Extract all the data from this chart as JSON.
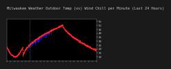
{
  "title": "Milwaukee Weather Outdoor Temp (vs) Wind Chill per Minute (Last 24 Hours)",
  "background_color": "#1a1a1a",
  "plot_background": "#000000",
  "title_color": "#cccccc",
  "tick_color": "#cccccc",
  "grid_color": "#333333",
  "ylim": [
    5,
    58
  ],
  "yticks": [
    10,
    15,
    20,
    25,
    30,
    35,
    40,
    45,
    50,
    55
  ],
  "num_points": 1440,
  "vline_x": 370,
  "temp_color": "#ff2222",
  "wind_chill_color": "#1111dd",
  "title_fontsize": 3.8,
  "tick_fontsize": 2.8
}
